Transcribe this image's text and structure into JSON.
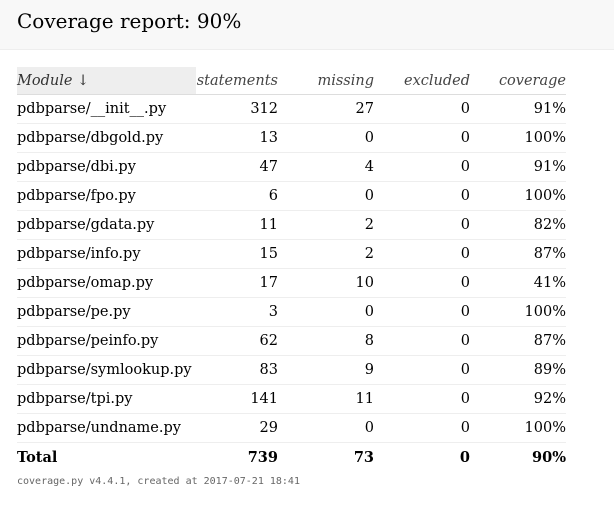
{
  "header": {
    "title": "Coverage report: 90%"
  },
  "table": {
    "columns": {
      "module": "Module ↓",
      "statements": "statements",
      "missing": "missing",
      "excluded": "excluded",
      "coverage": "coverage"
    },
    "rows": [
      {
        "module": "pdbparse/__init__.py",
        "statements": "312",
        "missing": "27",
        "excluded": "0",
        "coverage": "91%"
      },
      {
        "module": "pdbparse/dbgold.py",
        "statements": "13",
        "missing": "0",
        "excluded": "0",
        "coverage": "100%"
      },
      {
        "module": "pdbparse/dbi.py",
        "statements": "47",
        "missing": "4",
        "excluded": "0",
        "coverage": "91%"
      },
      {
        "module": "pdbparse/fpo.py",
        "statements": "6",
        "missing": "0",
        "excluded": "0",
        "coverage": "100%"
      },
      {
        "module": "pdbparse/gdata.py",
        "statements": "11",
        "missing": "2",
        "excluded": "0",
        "coverage": "82%"
      },
      {
        "module": "pdbparse/info.py",
        "statements": "15",
        "missing": "2",
        "excluded": "0",
        "coverage": "87%"
      },
      {
        "module": "pdbparse/omap.py",
        "statements": "17",
        "missing": "10",
        "excluded": "0",
        "coverage": "41%"
      },
      {
        "module": "pdbparse/pe.py",
        "statements": "3",
        "missing": "0",
        "excluded": "0",
        "coverage": "100%"
      },
      {
        "module": "pdbparse/peinfo.py",
        "statements": "62",
        "missing": "8",
        "excluded": "0",
        "coverage": "87%"
      },
      {
        "module": "pdbparse/symlookup.py",
        "statements": "83",
        "missing": "9",
        "excluded": "0",
        "coverage": "89%"
      },
      {
        "module": "pdbparse/tpi.py",
        "statements": "141",
        "missing": "11",
        "excluded": "0",
        "coverage": "92%"
      },
      {
        "module": "pdbparse/undname.py",
        "statements": "29",
        "missing": "0",
        "excluded": "0",
        "coverage": "100%"
      }
    ],
    "total": {
      "module": "Total",
      "statements": "739",
      "missing": "73",
      "excluded": "0",
      "coverage": "90%"
    }
  },
  "footer": {
    "text": "coverage.py v4.4.1, created at 2017-07-21 18:41"
  }
}
